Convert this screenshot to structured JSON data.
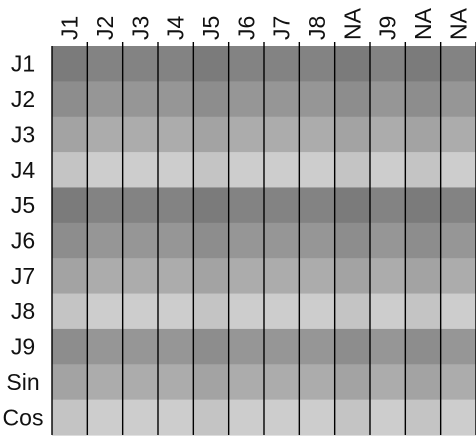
{
  "chart_data": {
    "type": "heatmap",
    "title": "",
    "xlabel": "",
    "ylabel": "",
    "legend": "none",
    "grid": "vertical column lines only",
    "columns": [
      "J1",
      "J2",
      "J3",
      "J4",
      "J5",
      "J6",
      "J7",
      "J8",
      "NA",
      "J9",
      "NA",
      "NA"
    ],
    "rows": [
      "J1",
      "J2",
      "J3",
      "J4",
      "J5",
      "J6",
      "J7",
      "J8",
      "J9",
      "Sin",
      "Cos"
    ],
    "row_shades": [
      "#7f7f7f",
      "#929292",
      "#a9a9a9",
      "#cbcbcb",
      "#7f7f7f",
      "#929292",
      "#a9a9a9",
      "#cbcbcb",
      "#929292",
      "#a9a9a9",
      "#cbcbcb"
    ],
    "column_tints": [
      "#000000",
      "#ffffff",
      "#ffffff",
      "#ffffff",
      "#000000",
      "#ffffff",
      "#ffffff",
      "#ffffff",
      "#000000",
      "#ffffff",
      "#000000",
      "#ffffff"
    ],
    "column_tint_strength": 0.035,
    "line_color": "#000000"
  }
}
